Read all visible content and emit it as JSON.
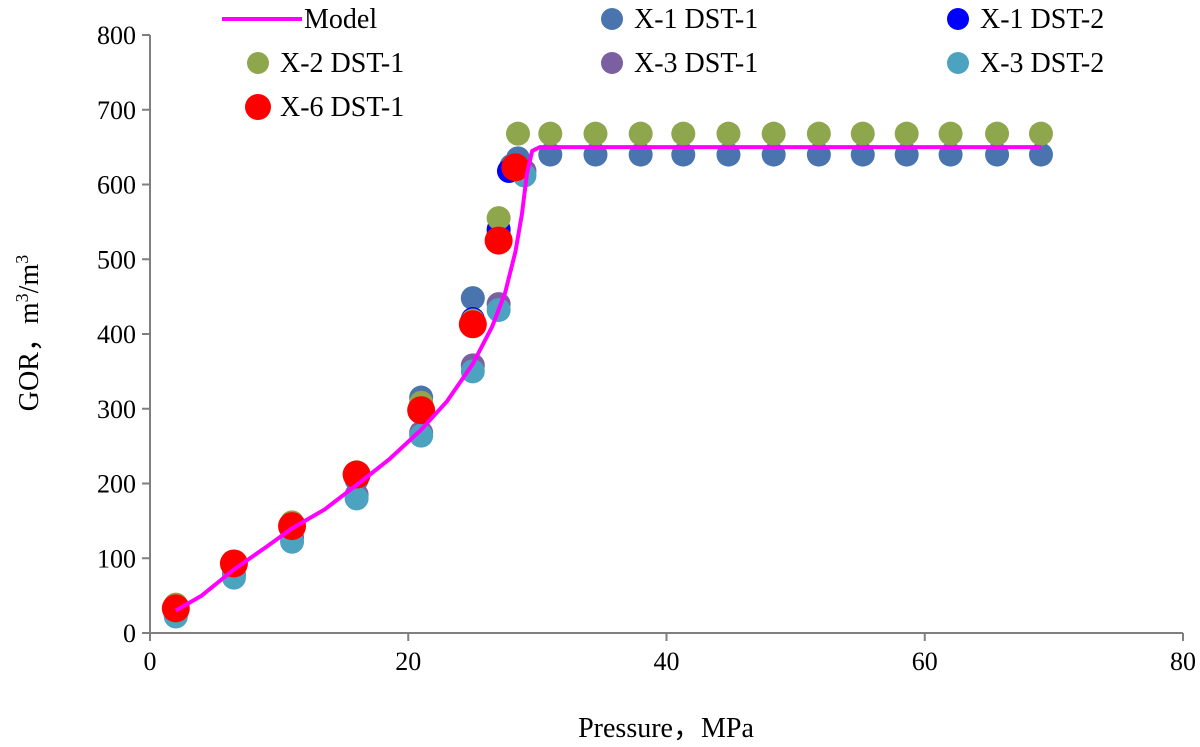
{
  "chart_data": {
    "type": "scatter",
    "title": "",
    "xlabel": "Pressure，MPa",
    "ylabel_main": "GOR，m",
    "ylabel_sup1": "3",
    "ylabel_mid": "/m",
    "ylabel_sup2": "3",
    "xlim": [
      0,
      80
    ],
    "ylim": [
      0,
      800
    ],
    "xticks": [
      0,
      20,
      40,
      60,
      80
    ],
    "yticks": [
      0,
      100,
      200,
      300,
      400,
      500,
      600,
      700,
      800
    ],
    "grid": false,
    "legend_position": "top",
    "model": {
      "name": "Model",
      "color": "#ff00ff",
      "points": [
        [
          2,
          30
        ],
        [
          4,
          50
        ],
        [
          6.5,
          85
        ],
        [
          9,
          115
        ],
        [
          11,
          140
        ],
        [
          13.5,
          165
        ],
        [
          16,
          198
        ],
        [
          18.5,
          232
        ],
        [
          21,
          272
        ],
        [
          23,
          310
        ],
        [
          25,
          360
        ],
        [
          26.5,
          410
        ],
        [
          27.5,
          455
        ],
        [
          28.3,
          510
        ],
        [
          28.8,
          560
        ],
        [
          29.2,
          615
        ],
        [
          29.6,
          645
        ],
        [
          30.2,
          650
        ],
        [
          40,
          650
        ],
        [
          50,
          650
        ],
        [
          60,
          650
        ],
        [
          69,
          650
        ]
      ]
    },
    "series": [
      {
        "name": "X-1 DST-1",
        "color": "#4a74ad",
        "points": [
          [
            2,
            37
          ],
          [
            6.5,
            88
          ],
          [
            11,
            142
          ],
          [
            16,
            205
          ],
          [
            21,
            315
          ],
          [
            25,
            448
          ],
          [
            27,
            535
          ],
          [
            28,
            625
          ],
          [
            28.5,
            635
          ],
          [
            31,
            640
          ],
          [
            34.5,
            640
          ],
          [
            38,
            640
          ],
          [
            41.3,
            640
          ],
          [
            44.8,
            640
          ],
          [
            48.3,
            640
          ],
          [
            51.8,
            640
          ],
          [
            55.2,
            640
          ],
          [
            58.6,
            640
          ],
          [
            62,
            640
          ],
          [
            65.6,
            640
          ],
          [
            69,
            640
          ]
        ]
      },
      {
        "name": "X-1 DST-2",
        "color": "#0000ff",
        "points": [
          [
            2,
            35
          ],
          [
            6.5,
            90
          ],
          [
            11,
            143
          ],
          [
            16,
            210
          ],
          [
            21,
            305
          ],
          [
            25,
            420
          ],
          [
            27,
            540
          ],
          [
            27.8,
            618
          ],
          [
            28.3,
            622
          ]
        ]
      },
      {
        "name": "X-2 DST-1",
        "color": "#8ea64c",
        "points": [
          [
            2,
            38
          ],
          [
            6.5,
            93
          ],
          [
            11,
            148
          ],
          [
            16,
            215
          ],
          [
            21,
            308
          ],
          [
            25,
            418
          ],
          [
            27,
            555
          ],
          [
            28.5,
            668
          ],
          [
            31,
            668
          ],
          [
            34.5,
            668
          ],
          [
            38,
            668
          ],
          [
            41.3,
            668
          ],
          [
            44.8,
            668
          ],
          [
            48.3,
            668
          ],
          [
            51.8,
            668
          ],
          [
            55.2,
            668
          ],
          [
            58.6,
            668
          ],
          [
            62,
            668
          ],
          [
            65.6,
            668
          ],
          [
            69,
            668
          ]
        ]
      },
      {
        "name": "X-3 DST-1",
        "color": "#7a60a0",
        "points": [
          [
            2,
            25
          ],
          [
            6.5,
            78
          ],
          [
            11,
            128
          ],
          [
            16,
            185
          ],
          [
            21,
            268
          ],
          [
            25,
            358
          ],
          [
            27,
            440
          ],
          [
            29,
            618
          ]
        ]
      },
      {
        "name": "X-3 DST-2",
        "color": "#4ba3bf",
        "points": [
          [
            2,
            22
          ],
          [
            6.5,
            74
          ],
          [
            11,
            122
          ],
          [
            16,
            180
          ],
          [
            21,
            264
          ],
          [
            25,
            350
          ],
          [
            27,
            432
          ],
          [
            29,
            612
          ]
        ]
      },
      {
        "name": "X-6 DST-1",
        "color": "#ff0000",
        "points": [
          [
            2,
            33
          ],
          [
            6.5,
            93
          ],
          [
            11,
            143
          ],
          [
            16,
            212
          ],
          [
            21,
            298
          ],
          [
            25,
            413
          ],
          [
            27,
            525
          ],
          [
            28.3,
            623
          ]
        ]
      }
    ]
  }
}
